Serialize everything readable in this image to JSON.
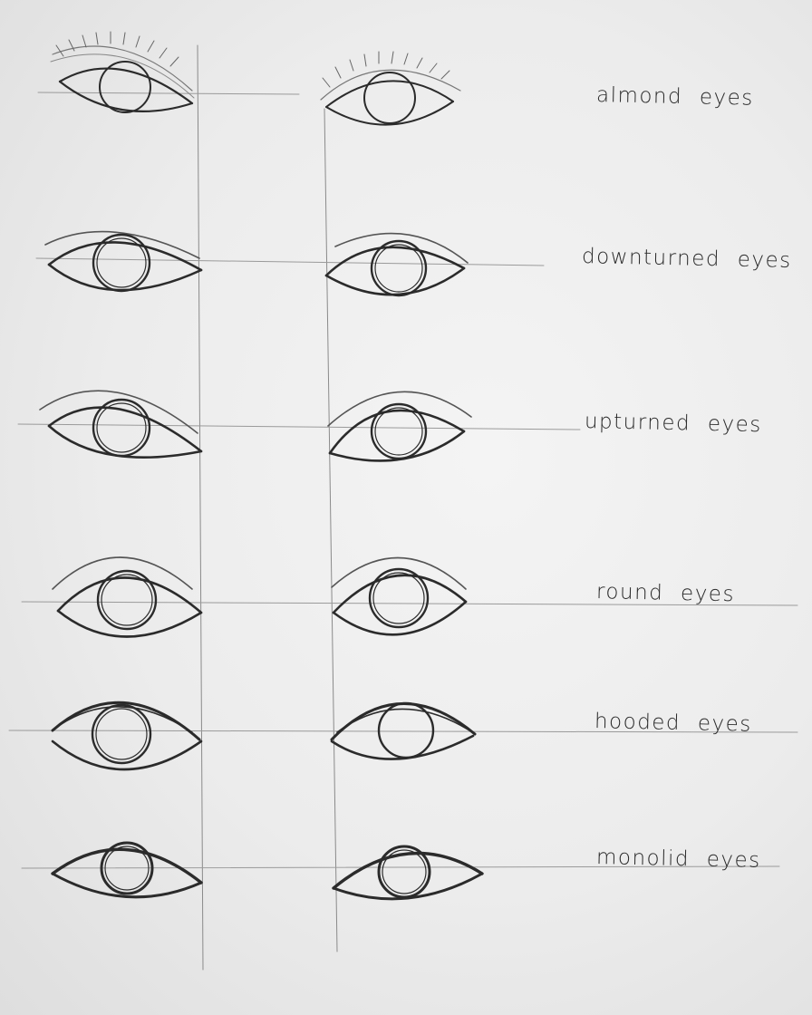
{
  "labels": [
    "almond eyes",
    "downturned eyes",
    "upturned eyes",
    "round eyes",
    "hooded eyes",
    "monolid eyes"
  ]
}
